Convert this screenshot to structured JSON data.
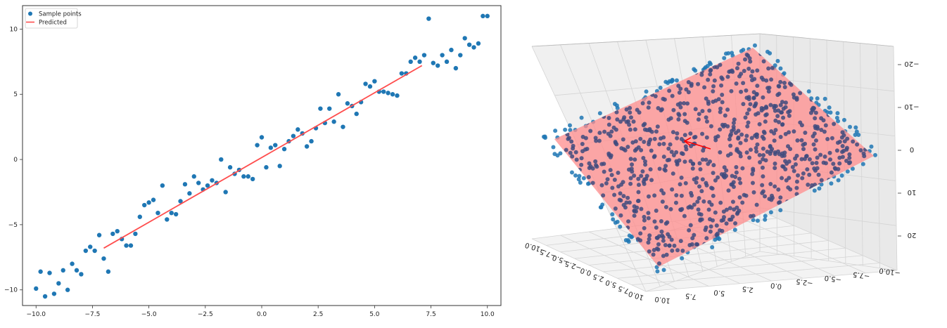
{
  "chart_data": [
    {
      "type": "scatter",
      "title": "",
      "xlabel": "",
      "ylabel": "",
      "xlim": [
        -10.6,
        10.6
      ],
      "ylim": [
        -11.2,
        11.8
      ],
      "xticks": [
        -10.0,
        -7.5,
        -5.0,
        -2.5,
        0.0,
        2.5,
        5.0,
        7.5,
        10.0
      ],
      "xtick_labels": [
        "−10.0",
        "−7.5",
        "−5.0",
        "−2.5",
        "0.0",
        "2.5",
        "5.0",
        "7.5",
        "10.0"
      ],
      "yticks": [
        -10,
        -5,
        0,
        5,
        10
      ],
      "ytick_labels": [
        "−10",
        "−5",
        "0",
        "5",
        "10"
      ],
      "grid": false,
      "legend_position": "top-left",
      "legend": [
        "Sample points",
        "Predicted"
      ],
      "series": [
        {
          "name": "Sample points",
          "kind": "scatter",
          "color": "#1f77b4",
          "x": [
            -10.0,
            -9.8,
            -9.6,
            -9.4,
            -9.2,
            -9.0,
            -8.8,
            -8.6,
            -8.4,
            -8.2,
            -8.0,
            -7.8,
            -7.6,
            -7.4,
            -7.2,
            -7.0,
            -6.8,
            -6.6,
            -6.4,
            -6.2,
            -6.0,
            -5.8,
            -5.6,
            -5.4,
            -5.2,
            -5.0,
            -4.8,
            -4.6,
            -4.4,
            -4.2,
            -4.0,
            -3.8,
            -3.6,
            -3.4,
            -3.2,
            -3.0,
            -2.8,
            -2.6,
            -2.4,
            -2.2,
            -2.0,
            -1.8,
            -1.6,
            -1.4,
            -1.2,
            -1.0,
            -0.8,
            -0.6,
            -0.4,
            -0.2,
            0.0,
            0.2,
            0.4,
            0.6,
            0.8,
            1.0,
            1.2,
            1.4,
            1.6,
            1.8,
            2.0,
            2.2,
            2.4,
            2.6,
            2.8,
            3.0,
            3.2,
            3.4,
            3.6,
            3.8,
            4.0,
            4.2,
            4.4,
            4.6,
            4.8,
            5.0,
            5.2,
            5.4,
            5.6,
            5.8,
            6.0,
            6.2,
            6.4,
            6.6,
            6.8,
            7.0,
            7.2,
            7.4,
            7.6,
            7.8,
            8.0,
            8.2,
            8.4,
            8.6,
            8.8,
            9.0,
            9.2,
            9.4,
            9.6,
            9.8,
            10.0
          ],
          "y": [
            -9.9,
            -8.6,
            -10.5,
            -8.7,
            -10.3,
            -9.5,
            -8.5,
            -10.0,
            -8.0,
            -8.5,
            -8.8,
            -7.0,
            -6.7,
            -7.0,
            -5.8,
            -7.6,
            -8.6,
            -5.7,
            -5.5,
            -6.1,
            -6.6,
            -6.6,
            -5.7,
            -4.4,
            -3.5,
            -3.3,
            -3.1,
            -4.1,
            -2.0,
            -4.6,
            -4.1,
            -4.2,
            -3.2,
            -1.9,
            -2.6,
            -1.3,
            -1.8,
            -2.3,
            -2.0,
            -1.6,
            -1.8,
            0.0,
            -2.5,
            -0.6,
            -1.1,
            -0.8,
            -1.3,
            -1.3,
            -1.5,
            1.1,
            1.7,
            -0.6,
            0.9,
            1.1,
            -0.5,
            0.8,
            1.4,
            1.8,
            2.3,
            2.0,
            1.0,
            1.4,
            2.4,
            3.9,
            2.8,
            3.9,
            2.9,
            5.0,
            2.5,
            4.3,
            4.1,
            3.5,
            4.4,
            5.8,
            5.6,
            6.0,
            5.2,
            5.2,
            5.1,
            5.0,
            4.9,
            6.6,
            6.6,
            7.5,
            7.8,
            7.5,
            8.0,
            10.8,
            7.4,
            7.2,
            8.0,
            7.5,
            8.4,
            7.0,
            8.0,
            9.3,
            8.8,
            8.6,
            8.9,
            11.0,
            11.0
          ]
        },
        {
          "name": "Predicted",
          "kind": "line",
          "color": "#ff4d4d",
          "x": [
            -7.0,
            7.1
          ],
          "y": [
            -6.8,
            7.2
          ]
        }
      ]
    },
    {
      "type": "scatter3d",
      "title": "",
      "xlim": [
        -10.0,
        10.0
      ],
      "ylim": [
        -10.0,
        10.0
      ],
      "zlim": [
        -25,
        25
      ],
      "xtick_labels": [
        "10.0",
        "7.5",
        "5.0",
        "2.5",
        "0.0",
        "−2.5",
        "−5.0",
        "−7.5",
        "−10.0"
      ],
      "ytick_labels": [
        "−10.0",
        "−7.5",
        "−5.0",
        "−2.5",
        "0.0",
        "2.5",
        "5.0",
        "7.5",
        "10.0"
      ],
      "ztick_labels": [
        "−20",
        "−10",
        "0",
        "10",
        "20"
      ],
      "grid": true,
      "series": [
        {
          "name": "",
          "kind": "points",
          "color": "#1f77b4",
          "count": 900
        },
        {
          "name": "",
          "kind": "plane",
          "color": "#ff8080"
        },
        {
          "name": "",
          "kind": "arrow",
          "color": "#ff0000"
        }
      ]
    }
  ]
}
